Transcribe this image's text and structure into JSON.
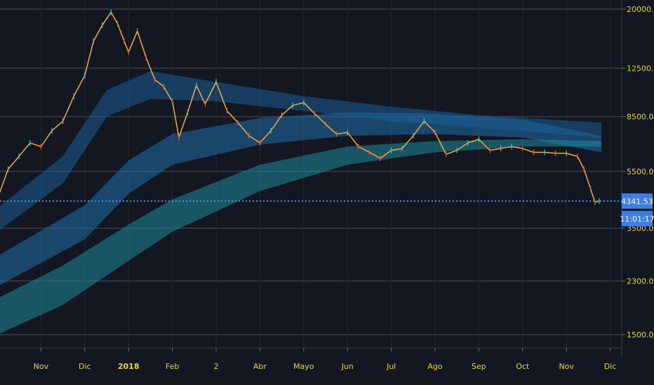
{
  "chart_data": {
    "type": "candlestick",
    "title": "",
    "xlabel": "",
    "ylabel": "",
    "y_scale": "log",
    "ylim": [
      1350,
      21500
    ],
    "y_ticks": [
      {
        "value": 20000,
        "label": "20000.00"
      },
      {
        "value": 12500,
        "label": "12500.00"
      },
      {
        "value": 8500,
        "label": "8500.00"
      },
      {
        "value": 5500,
        "label": "5500.00"
      },
      {
        "value": 3500,
        "label": "3500.00"
      },
      {
        "value": 2300,
        "label": "2300.00"
      },
      {
        "value": 1500,
        "label": "1500.00"
      }
    ],
    "x_ticks": [
      {
        "label": "Nov",
        "month_index": 1,
        "bold": false
      },
      {
        "label": "Dic",
        "month_index": 2,
        "bold": false
      },
      {
        "label": "2018",
        "month_index": 3,
        "bold": true
      },
      {
        "label": "Feb",
        "month_index": 4,
        "bold": false
      },
      {
        "label": "2",
        "month_index": 5,
        "bold": false
      },
      {
        "label": "Abr",
        "month_index": 6,
        "bold": false
      },
      {
        "label": "Mayo",
        "month_index": 7,
        "bold": false
      },
      {
        "label": "Jun",
        "month_index": 8,
        "bold": false
      },
      {
        "label": "Jul",
        "month_index": 9,
        "bold": false
      },
      {
        "label": "Ago",
        "month_index": 10,
        "bold": false
      },
      {
        "label": "Sep",
        "month_index": 11,
        "bold": false
      },
      {
        "label": "Oct",
        "month_index": 12,
        "bold": false
      },
      {
        "label": "Nov",
        "month_index": 13,
        "bold": false
      },
      {
        "label": "Dic",
        "month_index": 14,
        "bold": false
      }
    ],
    "price_path": [
      [
        0.0,
        4400
      ],
      [
        0.25,
        5600
      ],
      [
        0.5,
        6200
      ],
      [
        0.75,
        6900
      ],
      [
        1.0,
        6700
      ],
      [
        1.25,
        7600
      ],
      [
        1.5,
        8200
      ],
      [
        1.75,
        10000
      ],
      [
        2.0,
        11800
      ],
      [
        2.2,
        15500
      ],
      [
        2.4,
        17600
      ],
      [
        2.6,
        19500
      ],
      [
        2.75,
        17800
      ],
      [
        2.9,
        15500
      ],
      [
        3.0,
        14200
      ],
      [
        3.2,
        16800
      ],
      [
        3.4,
        13600
      ],
      [
        3.6,
        11400
      ],
      [
        3.8,
        10800
      ],
      [
        4.0,
        9600
      ],
      [
        4.15,
        7200
      ],
      [
        4.35,
        8800
      ],
      [
        4.55,
        10900
      ],
      [
        4.75,
        9400
      ],
      [
        5.0,
        11200
      ],
      [
        5.25,
        8900
      ],
      [
        5.5,
        8100
      ],
      [
        5.75,
        7300
      ],
      [
        6.0,
        6900
      ],
      [
        6.25,
        7600
      ],
      [
        6.5,
        8600
      ],
      [
        6.75,
        9300
      ],
      [
        7.0,
        9500
      ],
      [
        7.25,
        8700
      ],
      [
        7.5,
        8000
      ],
      [
        7.75,
        7400
      ],
      [
        8.0,
        7500
      ],
      [
        8.25,
        6700
      ],
      [
        8.5,
        6400
      ],
      [
        8.75,
        6100
      ],
      [
        9.0,
        6500
      ],
      [
        9.25,
        6600
      ],
      [
        9.5,
        7300
      ],
      [
        9.75,
        8200
      ],
      [
        10.0,
        7500
      ],
      [
        10.25,
        6300
      ],
      [
        10.5,
        6500
      ],
      [
        10.75,
        6900
      ],
      [
        11.0,
        7100
      ],
      [
        11.25,
        6500
      ],
      [
        11.5,
        6600
      ],
      [
        11.75,
        6700
      ],
      [
        12.0,
        6600
      ],
      [
        12.25,
        6400
      ],
      [
        12.5,
        6400
      ],
      [
        12.75,
        6350
      ],
      [
        13.0,
        6350
      ],
      [
        13.25,
        6200
      ],
      [
        13.4,
        5600
      ],
      [
        13.55,
        4800
      ],
      [
        13.65,
        4300
      ],
      [
        13.75,
        4342
      ]
    ],
    "series": [
      {
        "type": "ribbon",
        "color": "#1e6fa8",
        "lower": [
          [
            0,
            2200
          ],
          [
            2,
            3200
          ],
          [
            3,
            4600
          ],
          [
            4,
            5800
          ],
          [
            6,
            6800
          ],
          [
            8,
            7300
          ],
          [
            10,
            7400
          ],
          [
            12,
            7200
          ],
          [
            13.8,
            6400
          ]
        ],
        "upper": [
          [
            0,
            2800
          ],
          [
            2,
            4200
          ],
          [
            3,
            6000
          ],
          [
            4,
            7400
          ],
          [
            6,
            8400
          ],
          [
            8,
            8800
          ],
          [
            10,
            8700
          ],
          [
            12,
            8300
          ],
          [
            13.8,
            7300
          ]
        ]
      },
      {
        "type": "ribbon",
        "color": "#1d8a9a",
        "lower": [
          [
            0,
            1500
          ],
          [
            1.5,
            1900
          ],
          [
            3,
            2700
          ],
          [
            4,
            3400
          ],
          [
            6,
            4700
          ],
          [
            8,
            5800
          ],
          [
            10,
            6400
          ],
          [
            12,
            6700
          ],
          [
            13.8,
            6700
          ]
        ],
        "upper": [
          [
            0,
            2000
          ],
          [
            1.5,
            2600
          ],
          [
            3,
            3600
          ],
          [
            4,
            4400
          ],
          [
            6,
            5800
          ],
          [
            8,
            6700
          ],
          [
            10,
            7000
          ],
          [
            12,
            7100
          ],
          [
            13.8,
            7000
          ]
        ]
      },
      {
        "type": "ribbon",
        "color": "#1c5f96",
        "lower": [
          [
            0,
            3400
          ],
          [
            1.5,
            5000
          ],
          [
            2.5,
            8500
          ],
          [
            3.5,
            9800
          ],
          [
            5,
            9600
          ],
          [
            7,
            8900
          ],
          [
            9,
            8200
          ],
          [
            11,
            7800
          ],
          [
            13.8,
            7200
          ]
        ],
        "upper": [
          [
            0,
            4100
          ],
          [
            1.5,
            6200
          ],
          [
            2.5,
            10500
          ],
          [
            3.5,
            12200
          ],
          [
            5,
            11200
          ],
          [
            7,
            10000
          ],
          [
            9,
            9200
          ],
          [
            11,
            8600
          ],
          [
            13.8,
            8100
          ]
        ]
      }
    ],
    "current_price": {
      "value": 4341.53,
      "label": "4341.53"
    },
    "countdown": {
      "label": "11:01:17"
    },
    "grid": true,
    "legend": "none"
  }
}
